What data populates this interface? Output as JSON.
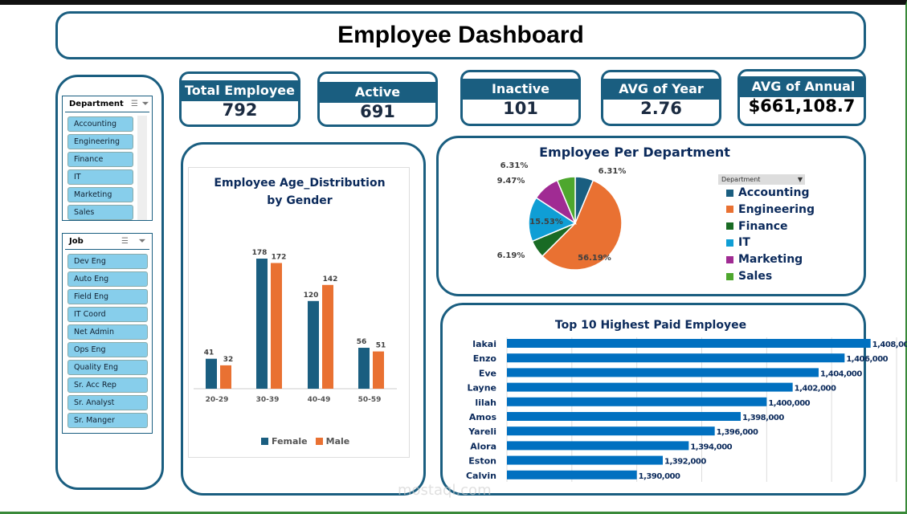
{
  "header": {
    "title": "Employee Dashboard"
  },
  "kpis": [
    {
      "label": "Total Employee",
      "value": "792"
    },
    {
      "label": "Active",
      "value": "691"
    },
    {
      "label": "Inactive",
      "value": "101"
    },
    {
      "label": "AVG of Year",
      "value": "2.76"
    },
    {
      "label": "AVG of Annual",
      "value": "$661,108.7"
    }
  ],
  "slicers": {
    "department": {
      "title": "Department",
      "icons": [
        "multi-select-icon",
        "clear-filter-icon"
      ],
      "items": [
        "Accounting",
        "Engineering",
        "Finance",
        "IT",
        "Marketing",
        "Sales"
      ]
    },
    "job": {
      "title": "Job",
      "icons": [
        "multi-select-icon",
        "clear-filter-icon"
      ],
      "items": [
        "Dev Eng",
        "Auto Eng",
        "Field Eng",
        "IT Coord",
        "Net Admin",
        "Ops Eng",
        "Quality Eng",
        "Sr. Acc Rep",
        "Sr. Analyst",
        "Sr. Manger"
      ]
    }
  },
  "watermark": "mostaql.com",
  "chart_data": [
    {
      "type": "bar",
      "title": "Employee Age_Distribution by Gender",
      "title_lines": [
        "Employee Age_Distribution",
        "by Gender"
      ],
      "categories": [
        "20-29",
        "30-39",
        "40-49",
        "50-59"
      ],
      "series": [
        {
          "name": "Female",
          "values": [
            41,
            178,
            120,
            56
          ],
          "color": "#1a5e80"
        },
        {
          "name": "Male",
          "values": [
            32,
            172,
            142,
            51
          ],
          "color": "#e97132"
        }
      ],
      "ylim": [
        0,
        200
      ],
      "grid": false,
      "legend": "bottom"
    },
    {
      "type": "pie",
      "title": "Employee Per Department",
      "filter_label": "Department",
      "categories": [
        "Accounting",
        "Engineering",
        "Finance",
        "IT",
        "Marketing",
        "Sales"
      ],
      "values": [
        6.31,
        56.19,
        6.19,
        15.53,
        9.47,
        6.31
      ],
      "labels": [
        "6.31%",
        "56.19%",
        "6.19%",
        "15.53%",
        "9.47%",
        "6.31%"
      ],
      "colors": [
        "#1a5e80",
        "#e97132",
        "#196b24",
        "#0f9ed5",
        "#a02b93",
        "#4ea72e"
      ],
      "legend": "right"
    },
    {
      "type": "bar",
      "orientation": "horizontal",
      "title": "Top 10 Highest Paid Employee",
      "categories": [
        "lakai",
        "Enzo",
        "Eve",
        "Layne",
        "lilah",
        "Amos",
        "Yareli",
        "Alora",
        "Eston",
        "Calvin"
      ],
      "values": [
        1408000,
        1406000,
        1404000,
        1402000,
        1400000,
        1398000,
        1396000,
        1394000,
        1392000,
        1390000
      ],
      "labels": [
        "1,408,000",
        "1,406,000",
        "1,404,000",
        "1,402,000",
        "1,400,000",
        "1,398,000",
        "1,396,000",
        "1,394,000",
        "1,392,000",
        "1,390,000"
      ],
      "xlim": [
        1380000,
        1410000
      ],
      "grid": true,
      "color": "#0070c0"
    }
  ]
}
